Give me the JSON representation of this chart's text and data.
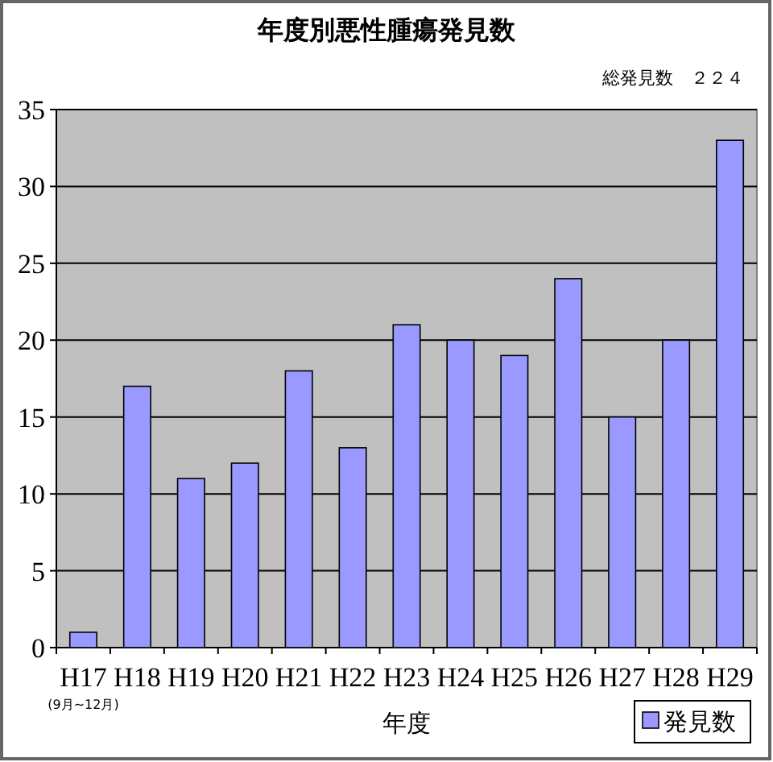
{
  "chart_data": {
    "type": "bar",
    "title": "年度別悪性腫瘍発見数",
    "xlabel": "年度",
    "annotations": [
      "総発見数　２２４",
      "(9月~12月)"
    ],
    "categories": [
      "H17",
      "H18",
      "H19",
      "H20",
      "H21",
      "H22",
      "H23",
      "H24",
      "H25",
      "H26",
      "H27",
      "H28",
      "H29"
    ],
    "series": [
      {
        "name": "発見数",
        "color": "#9999ff",
        "values": [
          1,
          17,
          11,
          12,
          18,
          13,
          21,
          20,
          19,
          24,
          15,
          20,
          33
        ]
      }
    ],
    "ylim": [
      0,
      35
    ],
    "yticks": [
      0,
      5,
      10,
      15,
      20,
      25,
      30,
      35
    ],
    "grid": "y",
    "legend": "bottom right"
  }
}
